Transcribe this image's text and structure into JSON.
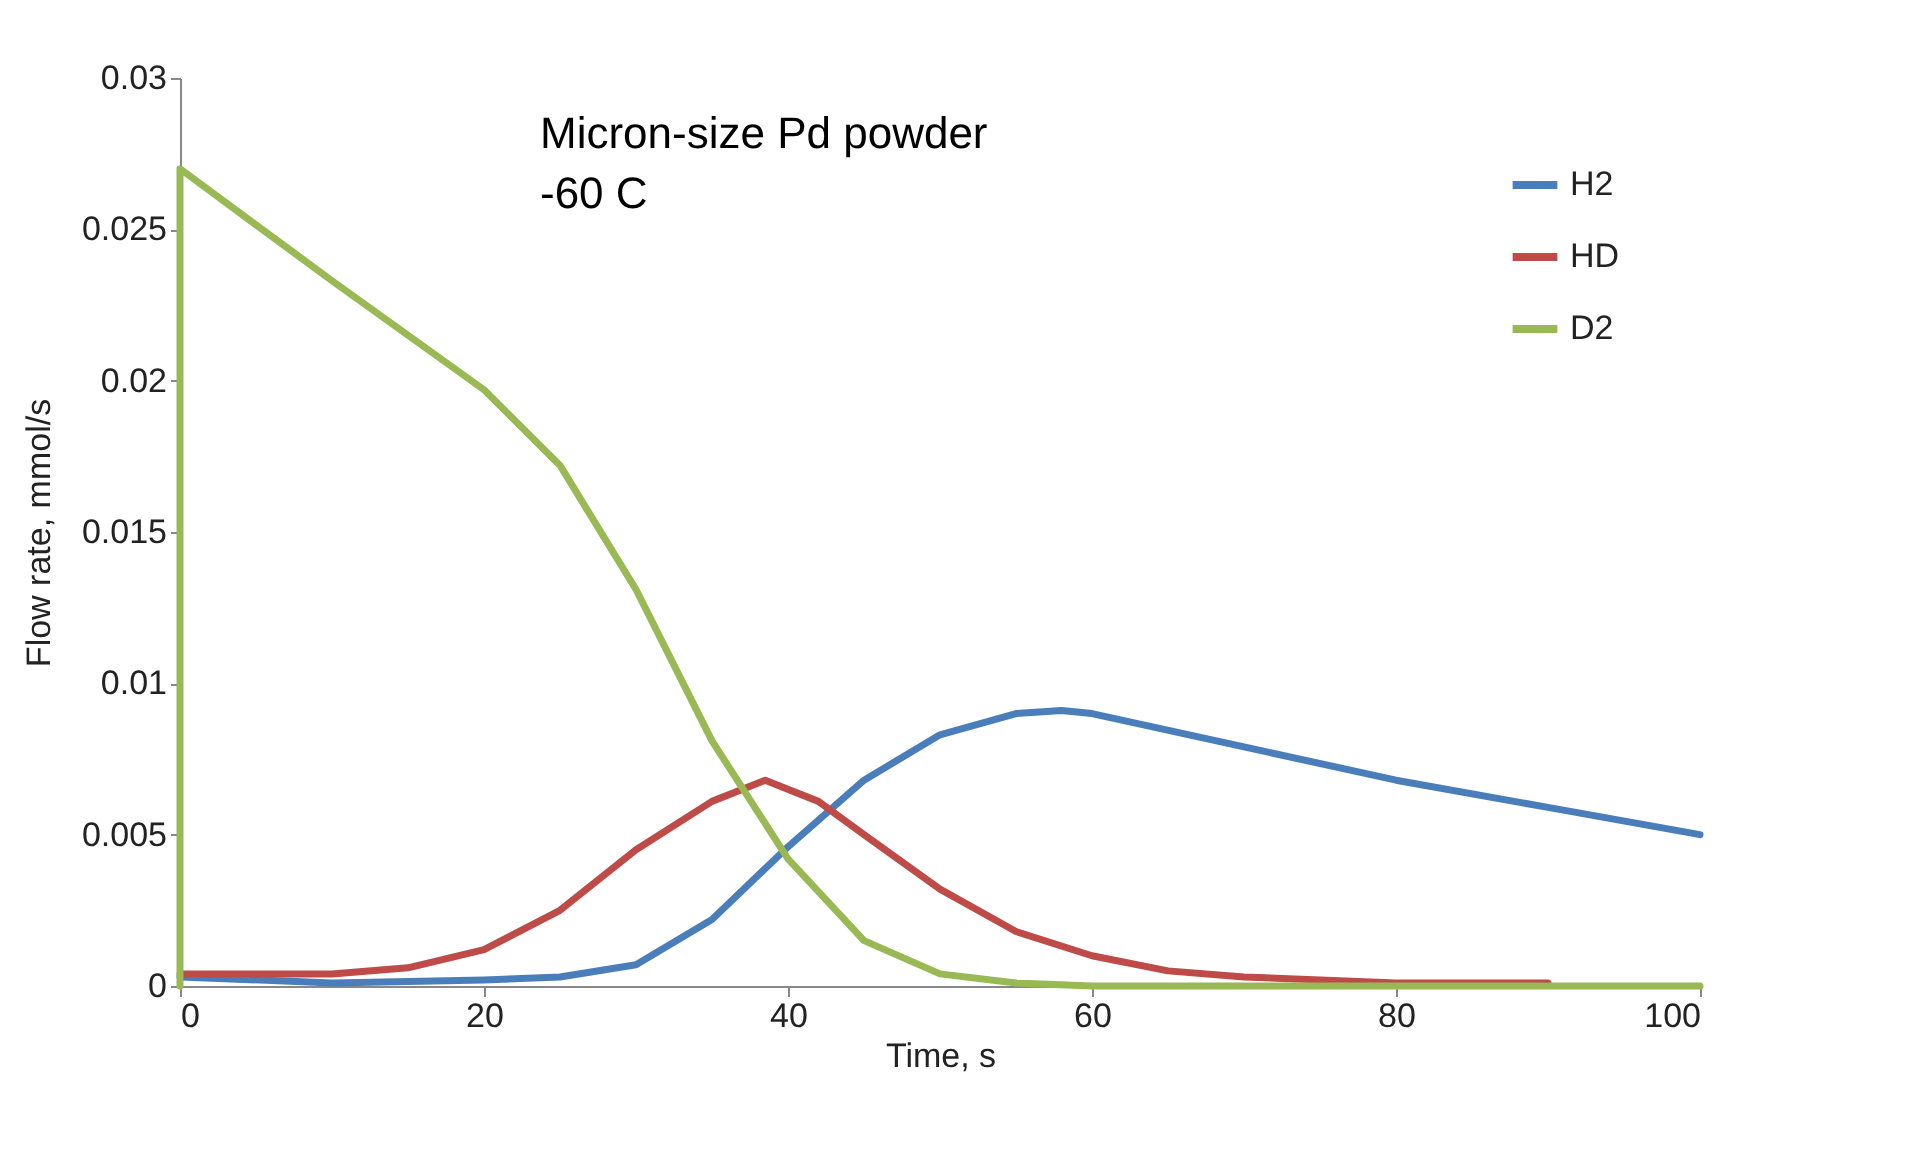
{
  "chart_data": {
    "type": "line",
    "xlabel": "Time, s",
    "ylabel": "Flow rate, mmol/s",
    "annotations": [
      "Micron-size Pd powder",
      "-60 C"
    ],
    "xlim": [
      0,
      100
    ],
    "xticks": [
      0,
      20,
      40,
      60,
      80,
      100
    ],
    "ylim": [
      0,
      0.03
    ],
    "yticks": [
      0,
      0.005,
      0.01,
      0.015,
      0.02,
      0.025,
      0.03
    ],
    "grid": false,
    "legend": "top right",
    "marker": "none",
    "line_style": "solid",
    "series": [
      {
        "name": "H2",
        "color": "#4a7ebb",
        "x": [
          0,
          10,
          20,
          25,
          30,
          35,
          40,
          45,
          50,
          55,
          58,
          60,
          70,
          80,
          90,
          100
        ],
        "values": [
          0.0003,
          0.0001,
          0.0002,
          0.0003,
          0.0007,
          0.0022,
          0.0046,
          0.0068,
          0.0083,
          0.009,
          0.0091,
          0.009,
          0.0079,
          0.0068,
          0.0059,
          0.005
        ]
      },
      {
        "name": "HD",
        "color": "#be4b48",
        "x": [
          0,
          10,
          15,
          20,
          25,
          30,
          35,
          38.5,
          42,
          45,
          50,
          55,
          60,
          65,
          70,
          80,
          90
        ],
        "values": [
          0.0004,
          0.0004,
          0.0006,
          0.0012,
          0.0025,
          0.0045,
          0.0061,
          0.0068,
          0.0061,
          0.005,
          0.0032,
          0.0018,
          0.001,
          0.0005,
          0.0003,
          0.0001,
          0.0001
        ]
      },
      {
        "name": "D2",
        "color": "#98b954",
        "x": [
          0,
          0,
          10,
          20,
          25,
          30,
          35,
          40,
          45,
          50,
          55,
          60,
          70,
          80,
          90,
          100
        ],
        "values": [
          0,
          0.027,
          0.0233,
          0.0197,
          0.0172,
          0.0131,
          0.0081,
          0.0042,
          0.0015,
          0.0004,
          0.0001,
          0,
          0,
          0,
          0,
          0
        ]
      }
    ]
  }
}
